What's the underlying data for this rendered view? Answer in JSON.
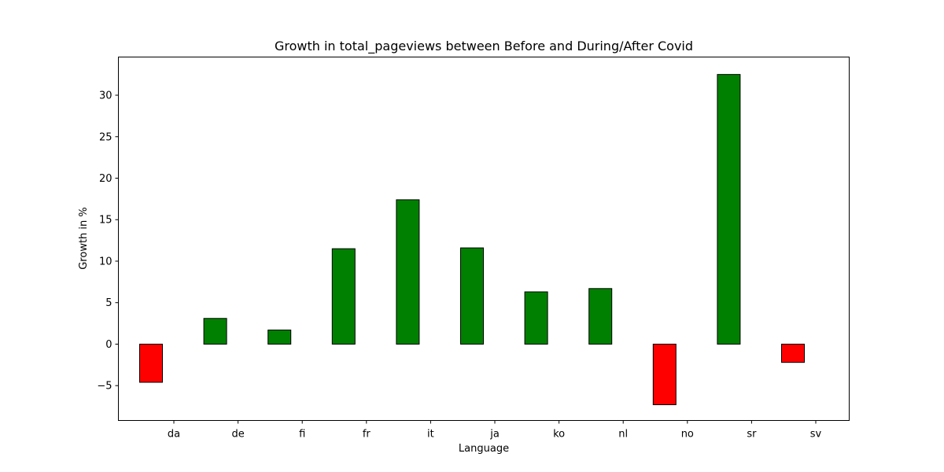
{
  "chart_data": {
    "type": "bar",
    "title": "Growth in total_pageviews between Before and During/After Covid",
    "xlabel": "Language",
    "ylabel": "Growth in %",
    "categories": [
      "da",
      "de",
      "fi",
      "fr",
      "it",
      "ja",
      "ko",
      "nl",
      "no",
      "sr",
      "sv"
    ],
    "values": [
      -4.6,
      3.1,
      1.7,
      11.5,
      17.4,
      11.6,
      6.3,
      6.7,
      -7.3,
      32.5,
      -2.2
    ],
    "ylim": [
      -9.2,
      34.6
    ],
    "yticks": [
      -5,
      0,
      5,
      10,
      15,
      20,
      25,
      30
    ],
    "ytick_labels": [
      "−5",
      "0",
      "5",
      "10",
      "15",
      "20",
      "25",
      "30"
    ],
    "grid": false,
    "colors": {
      "positive": "#008000",
      "negative": "#ff0000",
      "edge": "#000000"
    }
  }
}
